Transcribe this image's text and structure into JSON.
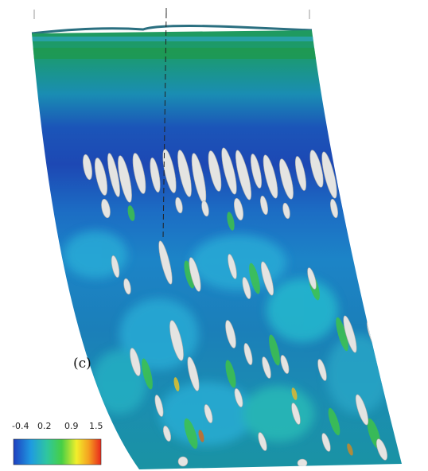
{
  "figure": {
    "panel_label": "(c)",
    "colorbar": {
      "ticks": [
        "-0.4",
        "0.2",
        "0.9",
        "1.5"
      ],
      "colors": [
        "#1e3fc0",
        "#1f9be0",
        "#2fc6a0",
        "#46cf45",
        "#f2ee2b",
        "#f5a020",
        "#e8281c"
      ]
    },
    "surface_colors": {
      "base": "#1b7fb9",
      "band_top": "#1f9a5f",
      "band_dark": "#1b3fa8",
      "cyan": "#2bb0d8",
      "isosurface": "#e4e4e2"
    }
  }
}
